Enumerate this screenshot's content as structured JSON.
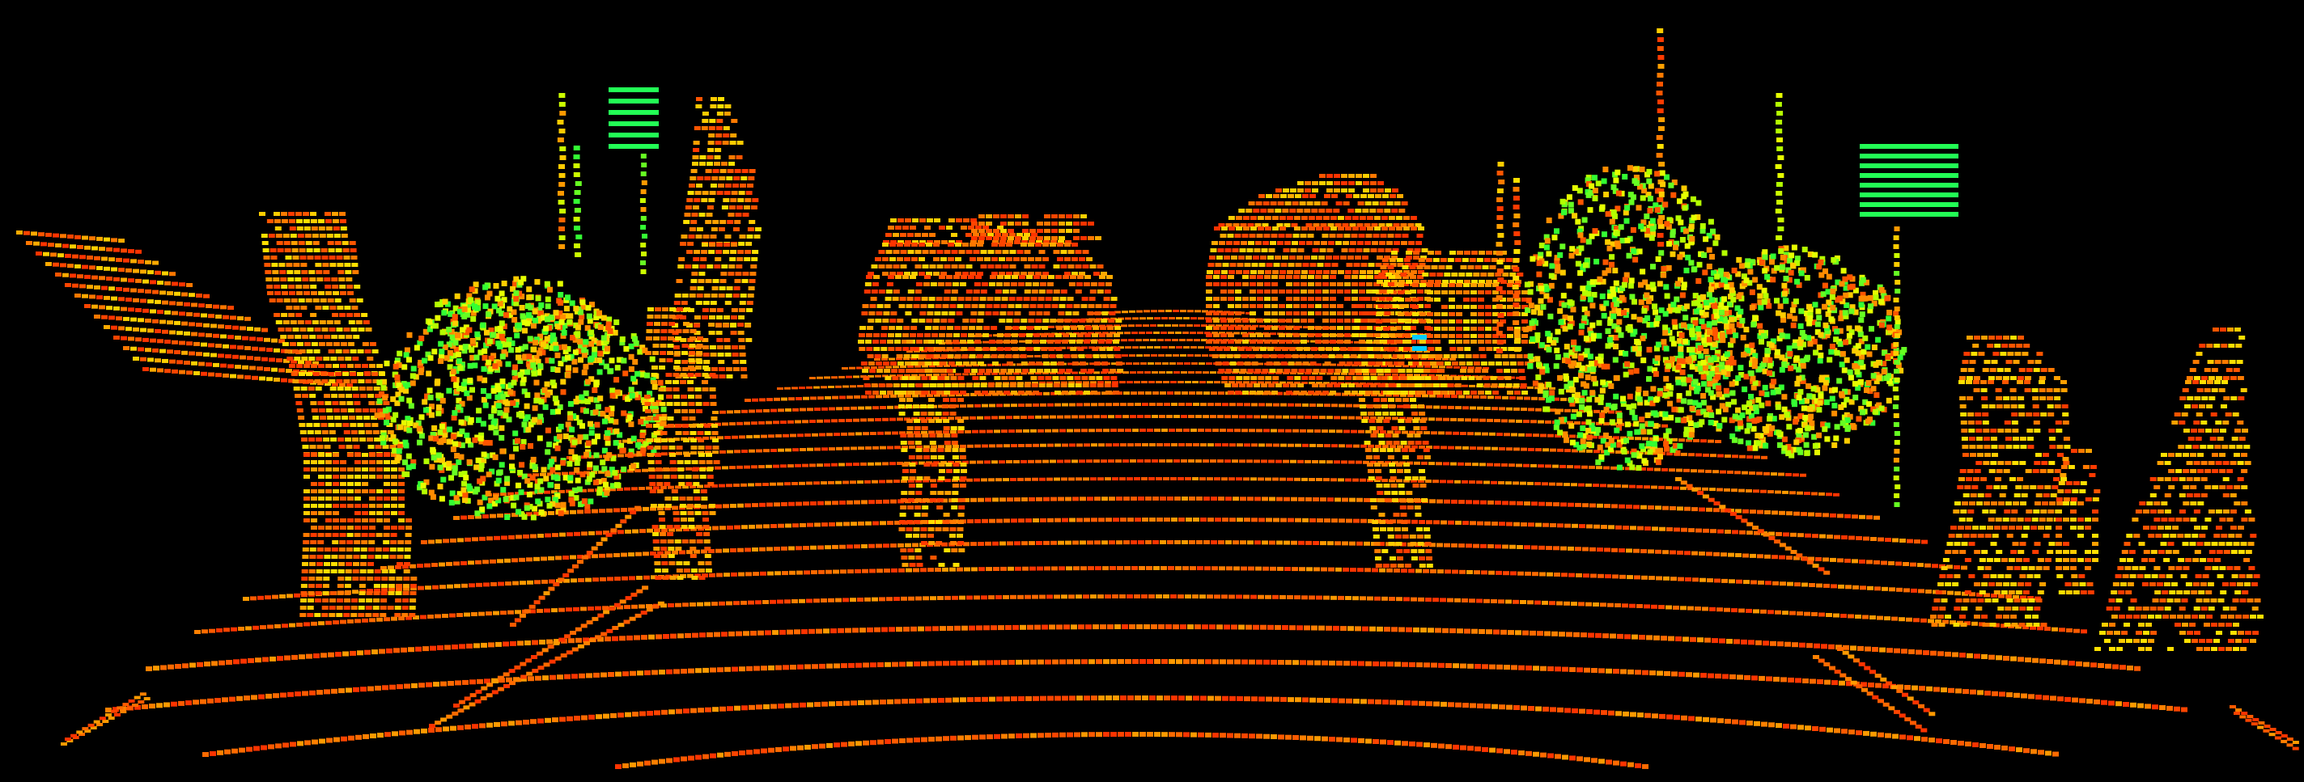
{
  "view": {
    "kind": "lidar-point-cloud",
    "background_color": "#000000"
  },
  "palette": {
    "ground_colors": [
      "#ff3300",
      "#ff4400",
      "#ff5a00",
      "#ff6a00",
      "#ff8000",
      "#ff9a00"
    ],
    "object_colors": [
      "#ff3a00",
      "#ff5500",
      "#ff7a00",
      "#ffa000",
      "#ffcc00",
      "#ffe000"
    ],
    "foliage_colors": [
      "#ff5500",
      "#ff8c00",
      "#ffcc00",
      "#e6ff00",
      "#b4ff00",
      "#66ff22",
      "#33ff33"
    ],
    "sign_color": "#22ff55",
    "accent_color": "#00ccff"
  },
  "objects": [
    {
      "type": "road-surface"
    },
    {
      "type": "tree-trunk"
    },
    {
      "type": "vegetation"
    },
    {
      "type": "parked-car"
    },
    {
      "type": "building"
    },
    {
      "type": "pedestrian"
    },
    {
      "type": "cyclist"
    },
    {
      "type": "sign"
    },
    {
      "type": "pole"
    }
  ]
}
